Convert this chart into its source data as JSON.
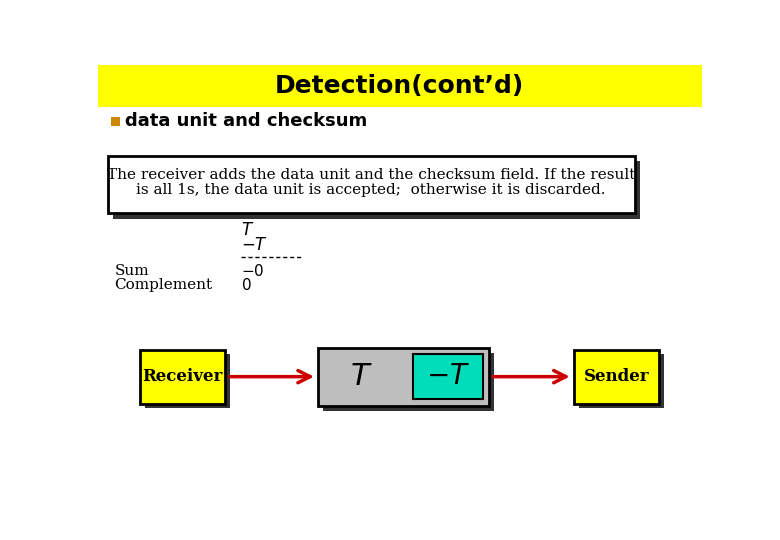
{
  "title": "Detection(cont’d)",
  "title_bg": "#FFFF00",
  "title_fontsize": 18,
  "bullet_text": "data unit and checksum",
  "box_text_line1": "The receiver adds the data unit and the checksum field. If the result",
  "box_text_line2": "is all 1s, the data unit is accepted;  otherwise it is discarded.",
  "receiver_label": "Receiver",
  "sender_label": "Sender",
  "yellow": "#FFFF00",
  "cyan": "#00DDBB",
  "gray": "#BEBEBE",
  "arrow_color": "#CC0000",
  "black": "#000000",
  "white": "#FFFFFF",
  "bg_color": "#FFFFFF",
  "shadow_color": "#333333"
}
